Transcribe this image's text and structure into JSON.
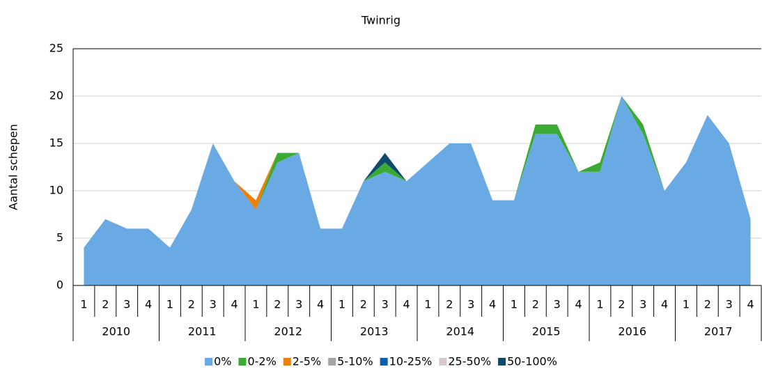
{
  "chart_data": {
    "type": "stacked_area",
    "title": "Twinrig",
    "y_label": "Aantal schepen",
    "categories": [
      "1",
      "2",
      "3",
      "4",
      "1",
      "2",
      "3",
      "4",
      "1",
      "2",
      "3",
      "4",
      "1",
      "2",
      "3",
      "4",
      "1",
      "2",
      "3",
      "4",
      "1",
      "2",
      "3",
      "4",
      "1",
      "2",
      "3",
      "4",
      "1",
      "2",
      "3",
      "4"
    ],
    "category_groups": [
      "2010",
      "2011",
      "2012",
      "2013",
      "2014",
      "2015",
      "2016",
      "2017"
    ],
    "series": [
      {
        "name": "0%",
        "color": "#6aaae4",
        "values": [
          4,
          7,
          6,
          6,
          4,
          8,
          15,
          11,
          8,
          13,
          14,
          6,
          6,
          11,
          12,
          11,
          13,
          15,
          15,
          9,
          9,
          16,
          16,
          12,
          12,
          20,
          16,
          10,
          13,
          18,
          15,
          7
        ]
      },
      {
        "name": "0-2%",
        "color": "#3aaa35",
        "values": [
          0,
          0,
          0,
          0,
          0,
          0,
          0,
          0,
          0,
          1,
          0,
          0,
          0,
          0,
          1,
          0,
          0,
          0,
          0,
          0,
          0,
          1,
          1,
          0,
          1,
          0,
          1,
          0,
          0,
          0,
          0,
          0
        ]
      },
      {
        "name": "2-5%",
        "color": "#f07f09",
        "values": [
          0,
          0,
          0,
          0,
          0,
          0,
          0,
          0,
          1,
          0,
          0,
          0,
          0,
          0,
          0,
          0,
          0,
          0,
          0,
          0,
          0,
          0,
          0,
          0,
          0,
          0,
          0,
          0,
          0,
          0,
          0,
          0
        ]
      },
      {
        "name": "5-10%",
        "color": "#a5a5a5",
        "values": [
          0,
          0,
          0,
          0,
          0,
          0,
          0,
          0,
          0,
          0,
          0,
          0,
          0,
          0,
          0,
          0,
          0,
          0,
          0,
          0,
          0,
          0,
          0,
          0,
          0,
          0,
          0,
          0,
          0,
          0,
          0,
          0
        ]
      },
      {
        "name": "10-25%",
        "color": "#0f5ca8",
        "values": [
          0,
          0,
          0,
          0,
          0,
          0,
          0,
          0,
          0,
          0,
          0,
          0,
          0,
          0,
          0,
          0,
          0,
          0,
          0,
          0,
          0,
          0,
          0,
          0,
          0,
          0,
          0,
          0,
          0,
          0,
          0,
          0
        ]
      },
      {
        "name": "25-50%",
        "color": "#d9c8c8",
        "values": [
          0,
          0,
          0,
          0,
          0,
          0,
          0,
          0,
          0,
          0,
          0,
          0,
          0,
          0,
          0,
          0,
          0,
          0,
          0,
          0,
          0,
          0,
          0,
          0,
          0,
          0,
          0,
          0,
          0,
          0,
          0,
          0
        ]
      },
      {
        "name": "50-100%",
        "color": "#0e4a6e",
        "values": [
          0,
          0,
          0,
          0,
          0,
          0,
          0,
          0,
          0,
          0,
          0,
          0,
          0,
          0,
          1,
          0,
          0,
          0,
          0,
          0,
          0,
          0,
          0,
          0,
          0,
          0,
          0,
          0,
          0,
          0,
          0,
          0
        ]
      }
    ],
    "ylim": [
      0,
      25
    ],
    "yticks": [
      0,
      5,
      10,
      15,
      20,
      25
    ],
    "grid": true,
    "legend": "bottom"
  }
}
